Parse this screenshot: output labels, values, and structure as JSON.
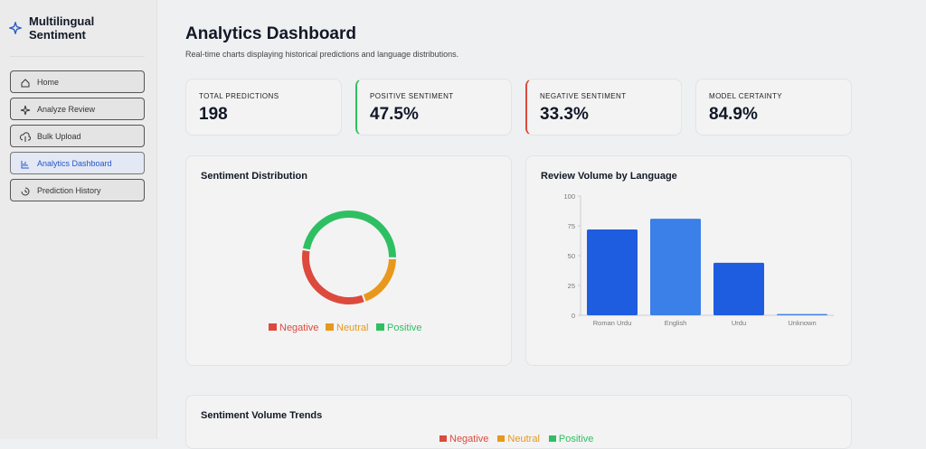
{
  "sidebar": {
    "brand": "Multilingual Sentiment",
    "nav": [
      "Home",
      "Analyze Review",
      "Bulk Upload",
      "Analytics Dashboard",
      "Prediction History"
    ],
    "active": 3
  },
  "header": {
    "title": "Analytics Dashboard",
    "subtitle": "Real-time charts displaying historical predictions and language distributions."
  },
  "stats": [
    {
      "label": "TOTAL PREDICTIONS",
      "value": "198"
    },
    {
      "label": "POSITIVE SENTIMENT",
      "value": "47.5%"
    },
    {
      "label": "NEGATIVE SENTIMENT",
      "value": "33.3%"
    },
    {
      "label": "MODEL CERTAINTY",
      "value": "84.9%"
    }
  ],
  "chart_data": [
    {
      "type": "doughnut",
      "title": "Sentiment Distribution",
      "categories": [
        "Negative",
        "Neutral",
        "Positive"
      ],
      "values": [
        33.3,
        19.2,
        47.5
      ],
      "colors": [
        "#dc4a3d",
        "#e8981c",
        "#2fbf63"
      ],
      "legend": "bottom"
    },
    {
      "type": "bar",
      "title": "Review Volume by Language",
      "categories": [
        "Roman Urdu",
        "English",
        "Urdu",
        "Unknown"
      ],
      "values": [
        72,
        81,
        44,
        1
      ],
      "colors": [
        "#1f5de0",
        "#3b7fe8",
        "#1f5de0",
        "#3b7fe8"
      ],
      "ylim": [
        0,
        100
      ],
      "yticks": [
        0,
        25,
        50,
        75,
        100
      ],
      "grid": false
    }
  ],
  "trends": {
    "title": "Sentiment Volume Trends",
    "legend": [
      {
        "name": "Negative",
        "color": "#dc4a3d"
      },
      {
        "name": "Neutral",
        "color": "#e8981c"
      },
      {
        "name": "Positive",
        "color": "#2fbf63"
      }
    ]
  }
}
